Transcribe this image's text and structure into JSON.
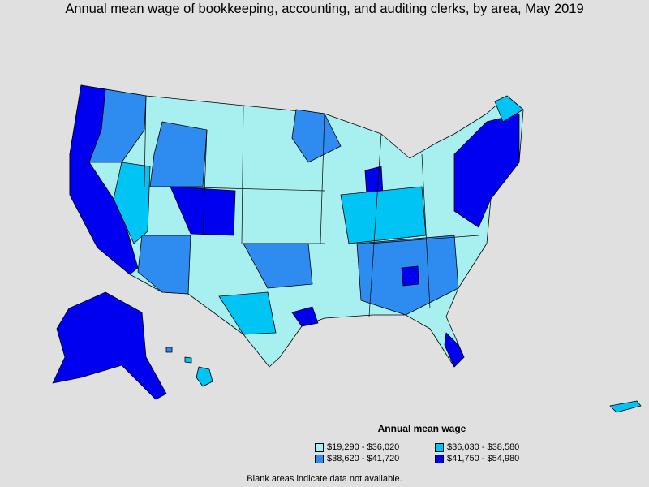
{
  "title": "Annual mean wage of bookkeeping, accounting, and auditing clerks, by area, May 2019",
  "legend": {
    "title": "Annual mean wage",
    "items": [
      {
        "label": "$19,290 - $36,020",
        "color": "#a8f0f0"
      },
      {
        "label": "$36,030 - $38,580",
        "color": "#00c4f4"
      },
      {
        "label": "$38,620 - $41,720",
        "color": "#2e8cf0"
      },
      {
        "label": "$41,750 - $54,980",
        "color": "#0000f0"
      }
    ]
  },
  "footnote": "Blank areas indicate data not available."
}
